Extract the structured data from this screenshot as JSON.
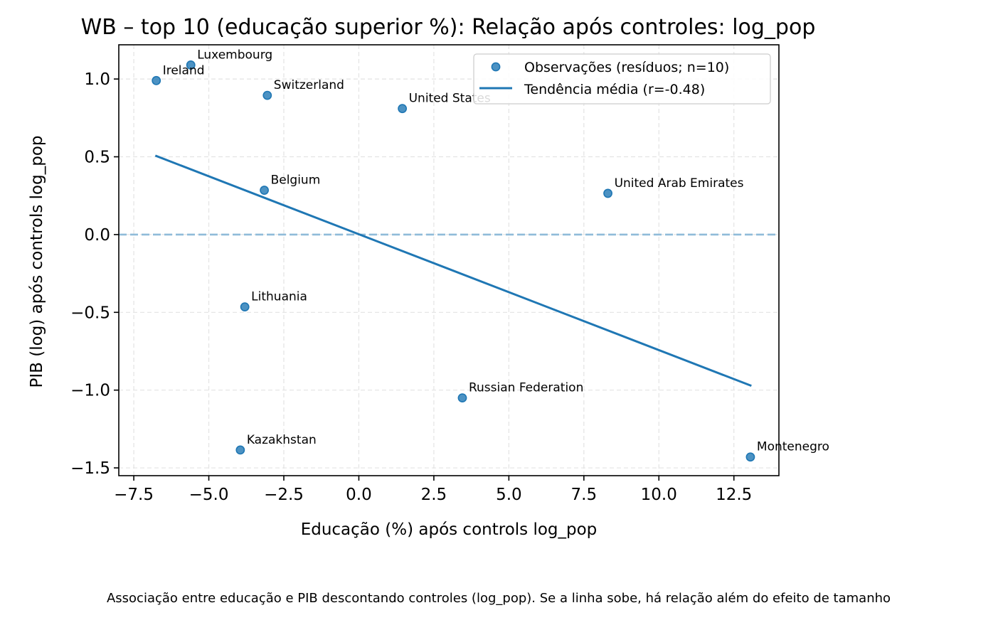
{
  "chart_data": {
    "type": "scatter",
    "title": "WB – top 10 (educação superior %): Relação após controles: log_pop",
    "xlabel": "Educação (%) após controls log_pop",
    "ylabel": "PIB (log) após controls log_pop",
    "caption": "Associação entre educação e PIB descontando controles (log_pop). Se a linha sobe, há relação além do efeito de tamanho",
    "xlim": [
      -8.0,
      14.0
    ],
    "ylim": [
      -1.55,
      1.22
    ],
    "xticks": [
      -7.5,
      -5.0,
      -2.5,
      0.0,
      2.5,
      5.0,
      7.5,
      10.0,
      12.5
    ],
    "xtick_labels": [
      "−7.5",
      "−5.0",
      "−2.5",
      "0.0",
      "2.5",
      "5.0",
      "7.5",
      "10.0",
      "12.5"
    ],
    "yticks": [
      -1.5,
      -1.0,
      -0.5,
      0.0,
      0.5,
      1.0
    ],
    "ytick_labels": [
      "−1.5",
      "−1.0",
      "−0.5",
      "0.0",
      "0.5",
      "1.0"
    ],
    "grid": true,
    "legend_position": "top-right",
    "series": [
      {
        "name": "Observações (resíduos; n=10)",
        "kind": "scatter",
        "color": "#1f77b4",
        "points": [
          {
            "label": "Ireland",
            "x": -6.75,
            "y": 0.99
          },
          {
            "label": "Luxembourg",
            "x": -5.6,
            "y": 1.09
          },
          {
            "label": "Switzerland",
            "x": -3.05,
            "y": 0.895
          },
          {
            "label": "United States",
            "x": 1.45,
            "y": 0.81
          },
          {
            "label": "Belgium",
            "x": -3.15,
            "y": 0.285
          },
          {
            "label": "United Arab Emirates",
            "x": 8.3,
            "y": 0.265
          },
          {
            "label": "Lithuania",
            "x": -3.8,
            "y": -0.465
          },
          {
            "label": "Russian Federation",
            "x": 3.45,
            "y": -1.05
          },
          {
            "label": "Kazakhstan",
            "x": -3.95,
            "y": -1.385
          },
          {
            "label": "Montenegro",
            "x": 13.05,
            "y": -1.43
          }
        ]
      },
      {
        "name": "Tendência média (r=-0.48)",
        "kind": "line",
        "color": "#1f77b4",
        "x": [
          -6.75,
          13.05
        ],
        "y": [
          0.505,
          -0.97
        ]
      }
    ],
    "reference_line": {
      "y": 0.0,
      "style": "dashed",
      "color": "#8fbbd9"
    }
  }
}
